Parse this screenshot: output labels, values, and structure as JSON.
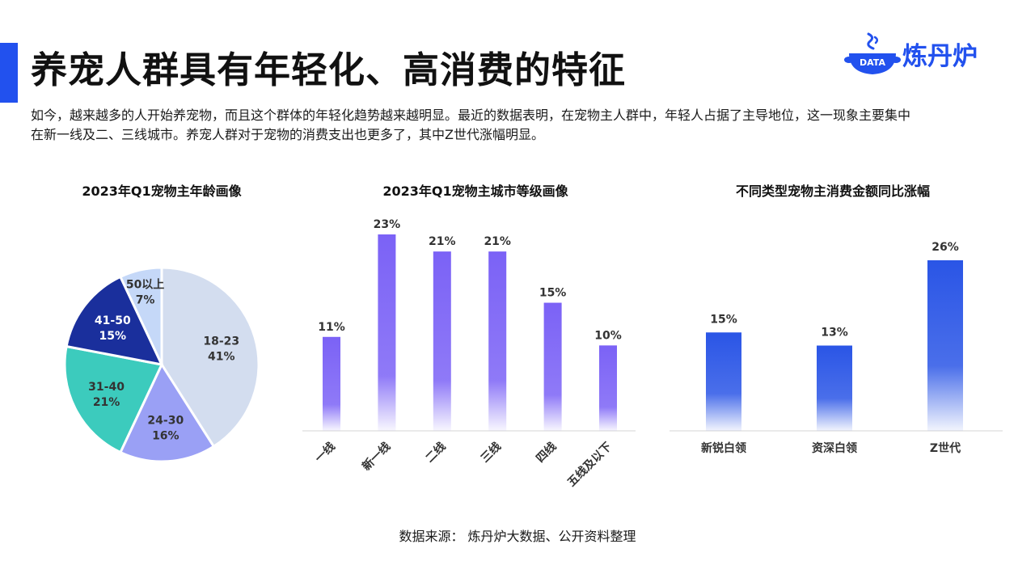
{
  "header": {
    "title": "养宠人群具有年轻化、高消费的特征",
    "logo_badge": "DATA",
    "logo_text": "炼丹炉"
  },
  "intro_text": "如今，越来越多的人开始养宠物，而且这个群体的年轻化趋势越来越明显。最近的数据表明，在宠物主人群中，年轻人占据了主导地位，这一现象主要集中在新一线及二、三线城市。养宠人群对于宠物的消费支出也更多了，其中Z世代涨幅明显。",
  "source_text": "数据来源： 炼丹炉大数据、公开资料整理",
  "colors": {
    "accent": "#2251ee",
    "pie": [
      "#d3ddef",
      "#9aa0f5",
      "#3ccbbd",
      "#1a2f9c",
      "#c5d8f8"
    ],
    "bar_purple": "#7b62f6",
    "bar_blue": "#2a55e6"
  },
  "chart_data": [
    {
      "type": "pie",
      "title": "2023年Q1宠物主年龄画像",
      "slices": [
        {
          "label": "18-23",
          "value": 41,
          "value_label": "41%"
        },
        {
          "label": "24-30",
          "value": 16,
          "value_label": "16%"
        },
        {
          "label": "31-40",
          "value": 21,
          "value_label": "21%"
        },
        {
          "label": "41-50",
          "value": 15,
          "value_label": "15%"
        },
        {
          "label": "50以上",
          "value": 7,
          "value_label": "7%"
        }
      ]
    },
    {
      "type": "bar",
      "title": "2023年Q1宠物主城市等级画像",
      "categories": [
        "一线",
        "新一线",
        "二线",
        "三线",
        "四线",
        "五线及以下"
      ],
      "values": [
        11,
        23,
        21,
        21,
        15,
        10
      ],
      "value_labels": [
        "11%",
        "23%",
        "21%",
        "21%",
        "15%",
        "10%"
      ],
      "ylim": [
        0,
        23
      ]
    },
    {
      "type": "bar",
      "title": "不同类型宠物主消费金额同比涨幅",
      "categories": [
        "新锐白领",
        "资深白领",
        "Z世代"
      ],
      "values": [
        15,
        13,
        26
      ],
      "value_labels": [
        "15%",
        "13%",
        "26%"
      ],
      "ylim": [
        0,
        26
      ]
    }
  ]
}
